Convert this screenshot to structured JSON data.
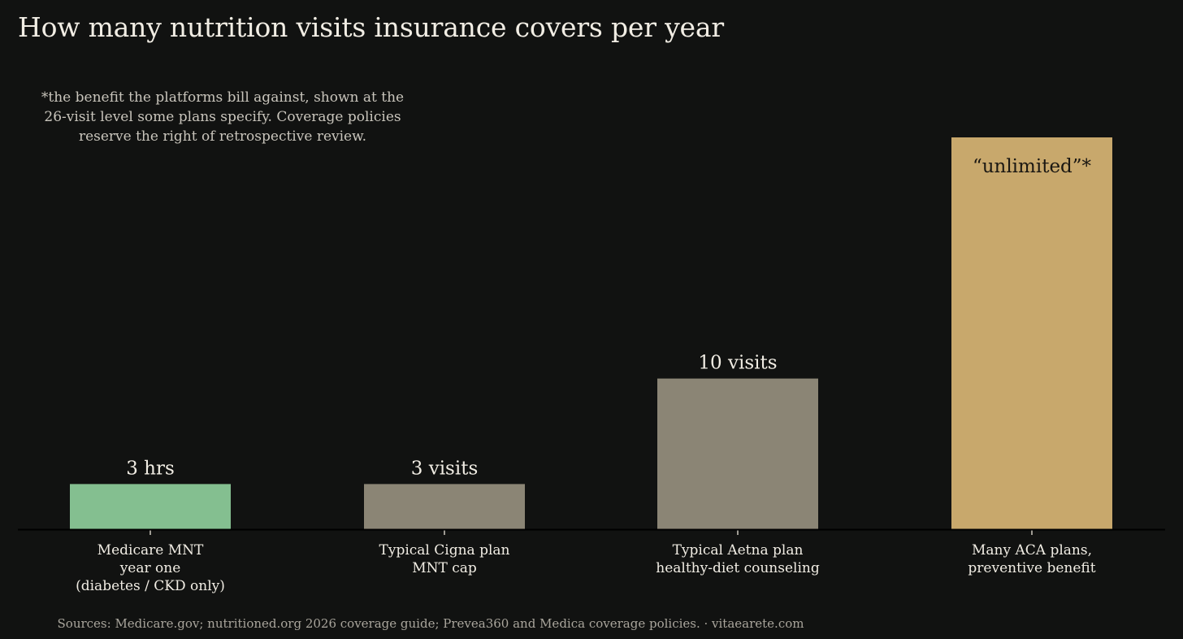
{
  "chart_data": {
    "type": "bar",
    "title": "How many nutrition visits insurance covers per year",
    "categories": [
      [
        "Medicare MNT",
        "year one",
        "(diabetes / CKD only)"
      ],
      [
        "Typical Cigna plan",
        "MNT cap"
      ],
      [
        "Typical Aetna plan",
        "healthy-diet counseling"
      ],
      [
        "Many ACA plans,",
        "preventive benefit"
      ]
    ],
    "values": [
      3,
      3,
      10,
      26
    ],
    "data_labels": [
      "3 hrs",
      "3 visits",
      "10 visits",
      "“unlimited”*"
    ],
    "bar_colors": [
      "#84bf90",
      "#8b8575",
      "#8b8575",
      "#c8a86c"
    ],
    "ylim": [
      0,
      26
    ],
    "xlabel": "",
    "ylabel": "",
    "grid": false,
    "annotation": "*the benefit the platforms bill against, shown at the\n26-visit level some plans specify. Coverage policies\nreserve the right of retrospective review.",
    "source": "Sources: Medicare.gov; nutritioned.org 2026 coverage guide; Prevea360 and Medica coverage policies.  ·  vitaearete.com"
  }
}
